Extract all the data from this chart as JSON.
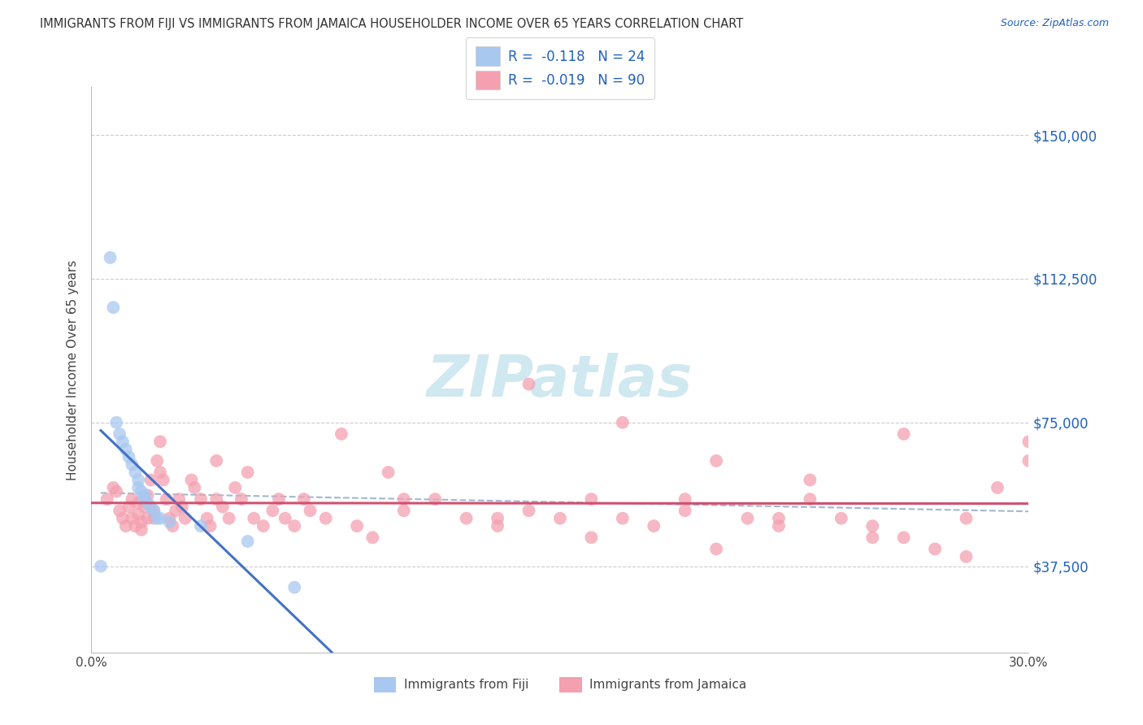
{
  "title": "IMMIGRANTS FROM FIJI VS IMMIGRANTS FROM JAMAICA HOUSEHOLDER INCOME OVER 65 YEARS CORRELATION CHART",
  "source": "Source: ZipAtlas.com",
  "ylabel": "Householder Income Over 65 years",
  "xmin": 0.0,
  "xmax": 0.3,
  "ymin": 15000,
  "ymax": 162500,
  "yticks": [
    37500,
    75000,
    112500,
    150000
  ],
  "ytick_labels": [
    "$37,500",
    "$75,000",
    "$112,500",
    "$150,000"
  ],
  "fiji_color": "#a8c8f0",
  "jamaica_color": "#f4a0b0",
  "fiji_R": -0.118,
  "fiji_N": 24,
  "jamaica_R": -0.019,
  "jamaica_N": 90,
  "fiji_line_color": "#4472c4",
  "jamaica_line_color": "#d05070",
  "fiji_x": [
    0.003,
    0.006,
    0.007,
    0.008,
    0.009,
    0.01,
    0.011,
    0.012,
    0.013,
    0.014,
    0.015,
    0.015,
    0.016,
    0.017,
    0.017,
    0.018,
    0.019,
    0.02,
    0.021,
    0.022,
    0.025,
    0.035,
    0.05,
    0.065
  ],
  "fiji_y": [
    37500,
    118000,
    105000,
    75000,
    72000,
    70000,
    68000,
    66000,
    64000,
    62000,
    60000,
    58000,
    57000,
    56000,
    55000,
    54000,
    53000,
    52000,
    50000,
    50000,
    49000,
    48000,
    44000,
    32000
  ],
  "jamaica_x": [
    0.005,
    0.007,
    0.008,
    0.009,
    0.01,
    0.011,
    0.012,
    0.013,
    0.013,
    0.014,
    0.015,
    0.015,
    0.016,
    0.016,
    0.017,
    0.018,
    0.018,
    0.019,
    0.02,
    0.02,
    0.021,
    0.022,
    0.022,
    0.023,
    0.024,
    0.025,
    0.026,
    0.027,
    0.028,
    0.029,
    0.03,
    0.032,
    0.033,
    0.035,
    0.037,
    0.038,
    0.04,
    0.04,
    0.042,
    0.044,
    0.046,
    0.048,
    0.05,
    0.052,
    0.055,
    0.058,
    0.06,
    0.062,
    0.065,
    0.068,
    0.07,
    0.075,
    0.08,
    0.085,
    0.09,
    0.095,
    0.1,
    0.11,
    0.12,
    0.13,
    0.14,
    0.15,
    0.16,
    0.17,
    0.18,
    0.19,
    0.2,
    0.21,
    0.22,
    0.23,
    0.24,
    0.25,
    0.26,
    0.27,
    0.28,
    0.29,
    0.3,
    0.14,
    0.17,
    0.2,
    0.23,
    0.26,
    0.1,
    0.13,
    0.16,
    0.19,
    0.22,
    0.25,
    0.28,
    0.3
  ],
  "jamaica_y": [
    55000,
    58000,
    57000,
    52000,
    50000,
    48000,
    53000,
    55000,
    50000,
    48000,
    54000,
    51000,
    49000,
    47000,
    53000,
    56000,
    50000,
    60000,
    52000,
    50000,
    65000,
    70000,
    62000,
    60000,
    55000,
    50000,
    48000,
    52000,
    55000,
    53000,
    50000,
    60000,
    58000,
    55000,
    50000,
    48000,
    65000,
    55000,
    53000,
    50000,
    58000,
    55000,
    62000,
    50000,
    48000,
    52000,
    55000,
    50000,
    48000,
    55000,
    52000,
    50000,
    72000,
    48000,
    45000,
    62000,
    52000,
    55000,
    50000,
    48000,
    52000,
    50000,
    55000,
    50000,
    48000,
    52000,
    42000,
    50000,
    48000,
    55000,
    50000,
    48000,
    45000,
    42000,
    50000,
    58000,
    70000,
    85000,
    75000,
    65000,
    60000,
    72000,
    55000,
    50000,
    45000,
    55000,
    50000,
    45000,
    40000,
    65000
  ],
  "fiji_line_x0": 0.003,
  "fiji_line_x1": 0.08,
  "jam_line_x0": 0.0,
  "jam_line_x1": 0.3,
  "trend_line_x0": 0.003,
  "trend_line_x1": 0.3,
  "watermark_text": "ZIPatlas",
  "watermark_color": "#d0e8f0",
  "legend_label_fiji": "R =  -0.118   N = 24",
  "legend_label_jamaica": "R =  -0.019   N = 90",
  "bottom_legend_fiji": "Immigrants from Fiji",
  "bottom_legend_jamaica": "Immigrants from Jamaica"
}
